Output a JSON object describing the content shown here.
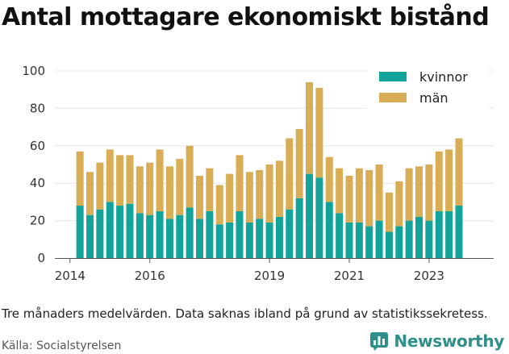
{
  "header": {
    "title": "Antal mottagare ekonomiskt bistånd"
  },
  "note": "Tre månaders medelvärden. Data saknas ibland på grund av statistikssekretess.",
  "source": "Källa: Socialstyrelsen",
  "brand": {
    "name": "Newsworthy",
    "icon": "bar-chart-logo-icon"
  },
  "colors": {
    "kvinnor": "#12a39a",
    "man": "#d9ad55"
  },
  "chart_data": {
    "type": "bar",
    "stacked": true,
    "title": "Antal mottagare ekonomiskt bistånd",
    "xlabel": "",
    "ylabel": "",
    "ylim": [
      0,
      100
    ],
    "yticks": [
      0,
      20,
      40,
      60,
      80,
      100
    ],
    "x_tick_labels": [
      "2014",
      "2016",
      "2019",
      "2021",
      "2023"
    ],
    "x_tick_positions": [
      2014.0,
      2016.0,
      2019.0,
      2021.0,
      2023.0
    ],
    "legend_position": "top-right",
    "grid": "horizontal",
    "x": [
      2014.25,
      2014.5,
      2014.75,
      2015.0,
      2015.25,
      2015.5,
      2015.75,
      2016.0,
      2016.25,
      2016.5,
      2016.75,
      2017.0,
      2017.25,
      2017.5,
      2017.75,
      2018.0,
      2018.25,
      2018.5,
      2018.75,
      2019.0,
      2019.25,
      2019.5,
      2019.75,
      2020.0,
      2020.25,
      2020.5,
      2020.75,
      2021.0,
      2021.25,
      2021.5,
      2021.75,
      2022.0,
      2022.25,
      2022.5,
      2022.75,
      2023.0,
      2023.25,
      2023.5,
      2023.75
    ],
    "series": [
      {
        "name": "kvinnor",
        "values": [
          28,
          23,
          26,
          30,
          28,
          29,
          24,
          23,
          25,
          21,
          23,
          27,
          21,
          25,
          18,
          19,
          25,
          19,
          21,
          19,
          22,
          26,
          32,
          45,
          43,
          30,
          24,
          19,
          19,
          17,
          20,
          14,
          17,
          20,
          22,
          20,
          25,
          25,
          28
        ]
      },
      {
        "name": "män",
        "values": [
          29,
          23,
          25,
          28,
          27,
          26,
          25,
          28,
          33,
          28,
          30,
          33,
          23,
          23,
          21,
          26,
          30,
          27,
          26,
          31,
          30,
          38,
          37,
          49,
          48,
          24,
          24,
          25,
          29,
          30,
          30,
          21,
          24,
          28,
          27,
          30,
          32,
          33,
          36
        ]
      }
    ]
  }
}
